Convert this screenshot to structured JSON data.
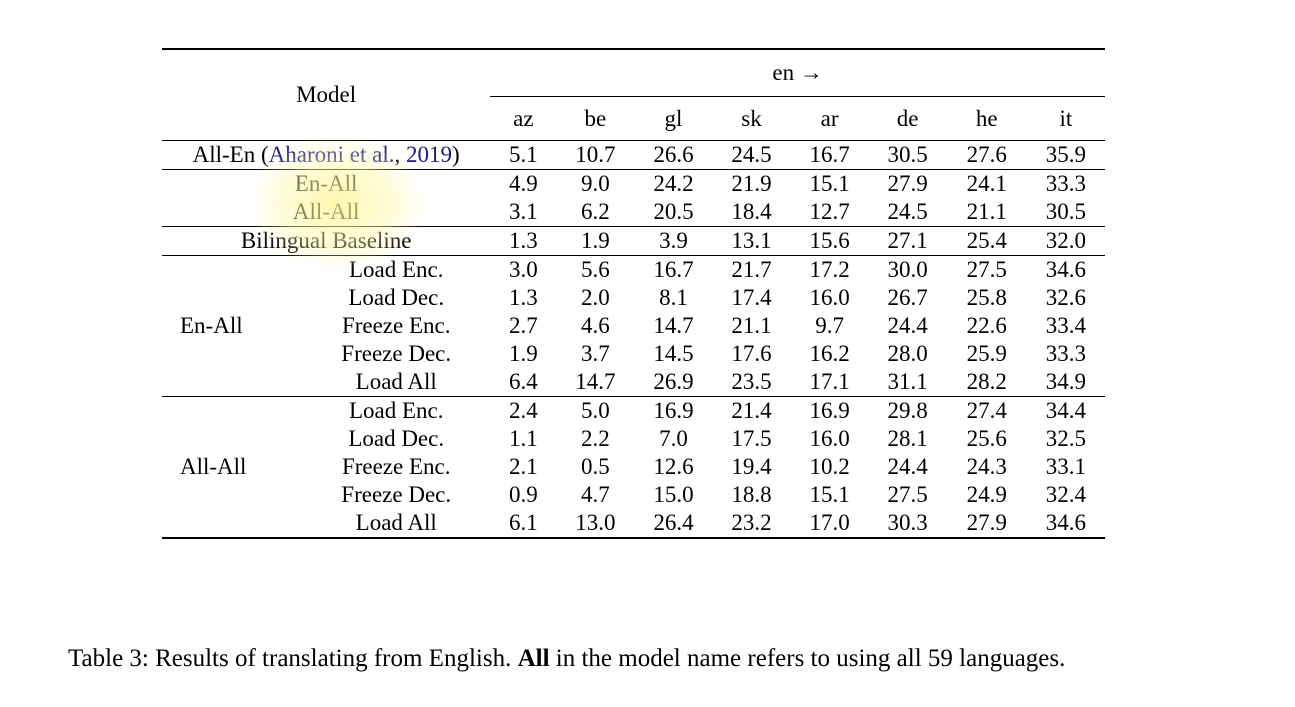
{
  "table": {
    "model_header": "Model",
    "direction_header": "en →",
    "languages": [
      "az",
      "be",
      "gl",
      "sk",
      "ar",
      "de",
      "he",
      "it"
    ],
    "all_en": {
      "name": "All-En",
      "cite_open": " (",
      "cite_authors": "Aharoni et al.",
      "cite_sep": ", ",
      "cite_year": "2019",
      "cite_close": ")",
      "values": [
        "5.1",
        "10.7",
        "26.6",
        "24.5",
        "16.7",
        "30.5",
        "27.6",
        "35.9"
      ]
    },
    "en_all": {
      "name": "En-All",
      "values": [
        "4.9",
        "9.0",
        "24.2",
        "21.9",
        "15.1",
        "27.9",
        "24.1",
        "33.3"
      ]
    },
    "all_all": {
      "name": "All-All",
      "values": [
        "3.1",
        "6.2",
        "20.5",
        "18.4",
        "12.7",
        "24.5",
        "21.1",
        "30.5"
      ]
    },
    "bilingual": {
      "name": "Bilingual Baseline",
      "values": [
        "1.3",
        "1.9",
        "3.9",
        "13.1",
        "15.6",
        "27.1",
        "25.4",
        "32.0"
      ]
    },
    "group_en_all": {
      "label": "En-All",
      "rows": [
        {
          "variant": "Load Enc.",
          "values": [
            "3.0",
            "5.6",
            "16.7",
            "21.7",
            "17.2",
            "30.0",
            "27.5",
            "34.6"
          ],
          "bold": [
            false,
            false,
            false,
            false,
            true,
            false,
            false,
            false
          ]
        },
        {
          "variant": "Load Dec.",
          "values": [
            "1.3",
            "2.0",
            "8.1",
            "17.4",
            "16.0",
            "26.7",
            "25.8",
            "32.6"
          ],
          "bold": [
            false,
            false,
            false,
            false,
            false,
            false,
            false,
            false
          ]
        },
        {
          "variant": "Freeze Enc.",
          "values": [
            "2.7",
            "4.6",
            "14.7",
            "21.1",
            "9.7",
            "24.4",
            "22.6",
            "33.4"
          ],
          "bold": [
            false,
            false,
            false,
            false,
            false,
            false,
            false,
            false
          ]
        },
        {
          "variant": "Freeze Dec.",
          "values": [
            "1.9",
            "3.7",
            "14.5",
            "17.6",
            "16.2",
            "28.0",
            "25.9",
            "33.3"
          ],
          "bold": [
            false,
            false,
            false,
            false,
            false,
            false,
            false,
            false
          ]
        },
        {
          "variant": "Load All",
          "values": [
            "6.4",
            "14.7",
            "26.9",
            "23.5",
            "17.1",
            "31.1",
            "28.2",
            "34.9"
          ],
          "bold": [
            true,
            true,
            true,
            true,
            false,
            true,
            true,
            true
          ]
        }
      ]
    },
    "group_all_all": {
      "label": "All-All",
      "rows": [
        {
          "variant": "Load Enc.",
          "values": [
            "2.4",
            "5.0",
            "16.9",
            "21.4",
            "16.9",
            "29.8",
            "27.4",
            "34.4"
          ],
          "bold": [
            false,
            false,
            false,
            false,
            false,
            false,
            false,
            false
          ]
        },
        {
          "variant": "Load Dec.",
          "values": [
            "1.1",
            "2.2",
            "7.0",
            "17.5",
            "16.0",
            "28.1",
            "25.6",
            "32.5"
          ],
          "bold": [
            false,
            false,
            false,
            false,
            false,
            false,
            false,
            false
          ]
        },
        {
          "variant": "Freeze Enc.",
          "values": [
            "2.1",
            "0.5",
            "12.6",
            "19.4",
            "10.2",
            "24.4",
            "24.3",
            "33.1"
          ],
          "bold": [
            false,
            false,
            false,
            false,
            false,
            false,
            false,
            false
          ]
        },
        {
          "variant": "Freeze Dec.",
          "values": [
            "0.9",
            "4.7",
            "15.0",
            "18.8",
            "15.1",
            "27.5",
            "24.9",
            "32.4"
          ],
          "bold": [
            false,
            false,
            false,
            false,
            false,
            false,
            false,
            false
          ]
        },
        {
          "variant": "Load All",
          "values": [
            "6.1",
            "13.0",
            "26.4",
            "23.2",
            "17.0",
            "30.3",
            "27.9",
            "34.6"
          ],
          "bold": [
            false,
            false,
            false,
            false,
            false,
            false,
            false,
            false
          ]
        }
      ]
    }
  },
  "caption": {
    "prefix": "Table 3: Results of translating from English. ",
    "bold_word": "All",
    "suffix": " in the model name refers to using all 59 languages."
  }
}
